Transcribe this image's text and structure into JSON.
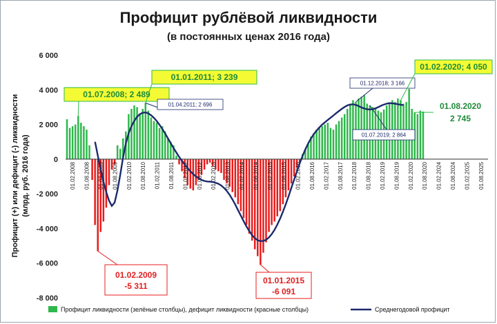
{
  "chart_data": {
    "type": "bar",
    "title": "Профицит рублёвой ликвидности",
    "subtitle": "(в постоянных ценах 2016 года)",
    "ylabel_line1": "Профицит (+) или дефицит (-) ликвидности",
    "ylabel_line2": "(млрд. руб. 2016 года)",
    "ylim": [
      -8000,
      6000
    ],
    "yticks": [
      "6 000",
      "4 000",
      "2 000",
      "0",
      "-2 000",
      "-4 000",
      "-6 000",
      "-8 000"
    ],
    "ytick_values": [
      6000,
      4000,
      2000,
      0,
      -2000,
      -4000,
      -6000,
      -8000
    ],
    "xticks": [
      "01.02.2008",
      "01.08.2008",
      "01.02.2009",
      "01.08.2009",
      "01.02.2010",
      "01.08.2010",
      "01.02.2011",
      "01.08.2011",
      "01.02.2012",
      "01.08.2012",
      "01.02.2013",
      "01.08.2013",
      "01.02.2014",
      "01.08.2014",
      "01.02.2015",
      "01.08.2015",
      "01.02.2016",
      "01.08.2016",
      "01.02.2017",
      "01.08.2017",
      "01.02.2018",
      "01.08.2018",
      "01.02.2019",
      "01.08.2019",
      "01.02.2020",
      "01.08.2020",
      "01.02.2024",
      "01.08.2024",
      "01.02.2025",
      "01.08.2025"
    ],
    "series": [
      {
        "name": "Профицит ликвидности (зелёные столбцы), дефицит ликвидности (красные столбцы)",
        "positive_color": "#2eb84b",
        "negative_color": "#e81c1c",
        "values": [
          2300,
          1800,
          1900,
          2000,
          2489,
          2100,
          1900,
          1700,
          800,
          -1200,
          -3800,
          -5311,
          -4200,
          -3600,
          -2800,
          -1500,
          -600,
          -300,
          800,
          600,
          1200,
          1600,
          2600,
          2900,
          3100,
          3000,
          2600,
          2900,
          3239,
          2800,
          2400,
          2200,
          2100,
          1800,
          1900,
          1600,
          1200,
          1000,
          800,
          200,
          -300,
          -700,
          -1100,
          -1500,
          -1700,
          -1800,
          -1500,
          -1200,
          -900,
          -600,
          -300,
          -200,
          -400,
          -600,
          -700,
          -800,
          -1200,
          -1400,
          -1600,
          -1900,
          -2200,
          -2600,
          -3000,
          -3400,
          -3800,
          -4300,
          -4700,
          -5200,
          -5600,
          -6091,
          -5400,
          -4800,
          -4200,
          -3800,
          -3600,
          -3300,
          -3000,
          -2600,
          -2200,
          -1800,
          -1400,
          -1000,
          -500,
          -200,
          300,
          600,
          900,
          1300,
          1500,
          1700,
          1800,
          1900,
          2000,
          2100,
          1800,
          1700,
          2000,
          2200,
          2400,
          2600,
          2900,
          3200,
          3400,
          3300,
          3500,
          3600,
          3700,
          3200,
          3100,
          3000,
          2900,
          2800,
          2700,
          2864,
          3100,
          3200,
          3400,
          3300,
          3500,
          3400,
          3200,
          3300,
          4050,
          2900,
          2700,
          2600,
          2800,
          2745
        ]
      },
      {
        "name": "Среднегодовой профицит",
        "color": "#1b2a6b",
        "values": [
          null,
          null,
          null,
          null,
          null,
          null,
          null,
          null,
          null,
          null,
          1000,
          200,
          -600,
          -1300,
          -1900,
          -2400,
          -2700,
          -2500,
          -1800,
          -900,
          100,
          900,
          1500,
          1900,
          2200,
          2450,
          2600,
          2680,
          2696,
          2640,
          2530,
          2380,
          2200,
          1980,
          1740,
          1480,
          1200,
          920,
          640,
          380,
          130,
          -100,
          -320,
          -520,
          -700,
          -860,
          -1000,
          -1120,
          -1200,
          -1260,
          -1290,
          -1300,
          -1320,
          -1360,
          -1420,
          -1520,
          -1660,
          -1840,
          -2060,
          -2320,
          -2620,
          -2940,
          -3260,
          -3580,
          -3880,
          -4150,
          -4380,
          -4560,
          -4680,
          -4730,
          -4720,
          -4650,
          -4520,
          -4330,
          -4080,
          -3780,
          -3430,
          -3040,
          -2610,
          -2150,
          -1670,
          -1180,
          -700,
          -240,
          180,
          560,
          900,
          1190,
          1440,
          1650,
          1830,
          1990,
          2130,
          2260,
          2390,
          2520,
          2650,
          2780,
          2900,
          3010,
          3100,
          3150,
          3166,
          3130,
          3060,
          2980,
          2920,
          2880,
          2864,
          2880,
          2930,
          3000,
          3080,
          3150,
          3200,
          3230,
          3220,
          3200,
          3170,
          3140,
          3120
        ]
      }
    ],
    "annotations": [
      {
        "text": "01.07.2008; 2 489",
        "style": "green-box"
      },
      {
        "text": "01.01.2011; 3 239",
        "style": "green-box"
      },
      {
        "text": "01.04.2011; 2 696",
        "style": "small-box"
      },
      {
        "text": "01.02.2009",
        "text2": "-5 311",
        "style": "red-box"
      },
      {
        "text": "01.01.2015",
        "text2": "-6 091",
        "style": "red-box"
      },
      {
        "text": "01.12.2018; 3 166",
        "style": "small-box"
      },
      {
        "text": "01.07.2019; 2 864",
        "style": "small-box"
      },
      {
        "text": "01.02.2020; 4 050",
        "style": "green-box"
      },
      {
        "text": "01.08.2020",
        "text2": "2 745",
        "style": "green-text"
      }
    ],
    "legend_position": "bottom",
    "grid": false
  },
  "colors": {
    "green_box_fill": "#f4fb34",
    "green_box_border": "#2eb84b",
    "red_box_border": "#e81c1c"
  }
}
